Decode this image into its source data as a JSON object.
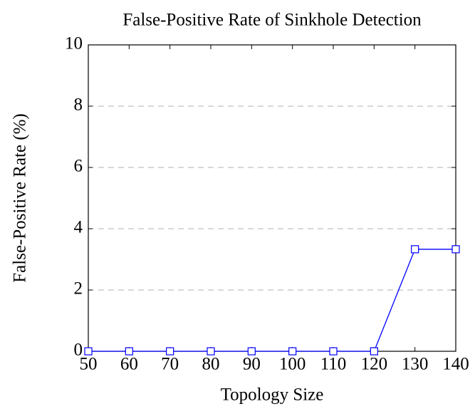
{
  "chart_data": {
    "type": "line",
    "title": "False-Positive Rate of Sinkhole Detection",
    "xlabel": "Topology Size",
    "ylabel": "False-Positive Rate (%)",
    "x": [
      50,
      60,
      70,
      80,
      90,
      100,
      110,
      120,
      130,
      140
    ],
    "series": [
      {
        "color": "#0000ff",
        "values": [
          0,
          0,
          0,
          0,
          0,
          0,
          0,
          0,
          3.33,
          3.33
        ]
      }
    ],
    "xlim": [
      50,
      140
    ],
    "xticks": [
      50,
      60,
      70,
      80,
      90,
      100,
      110,
      120,
      130,
      140
    ],
    "ylim": [
      0,
      10
    ],
    "yticks": [
      0,
      2,
      4,
      6,
      8,
      10
    ],
    "grid": true
  }
}
